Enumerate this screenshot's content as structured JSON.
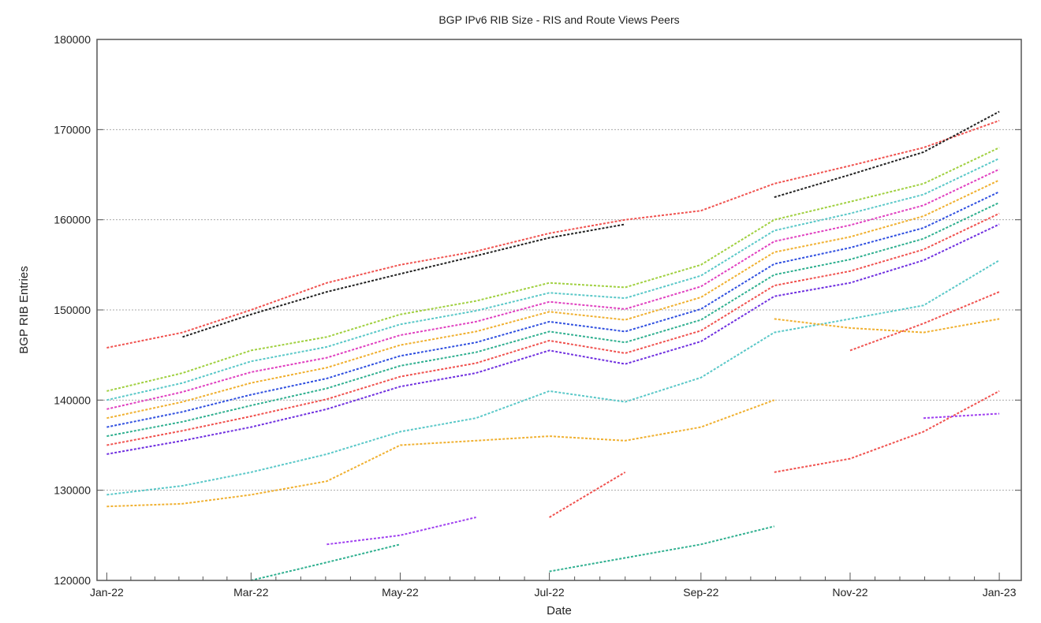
{
  "chart_data": {
    "type": "scatter",
    "title": "BGP IPv6 RIB Size - RIS and Route Views Peers",
    "xlabel": "Date",
    "ylabel": "BGP RIB Entries",
    "xlim": [
      "2021-12-28",
      "2023-01-10"
    ],
    "ylim": [
      120000,
      180000
    ],
    "yticks": [
      120000,
      130000,
      140000,
      150000,
      160000,
      170000,
      180000
    ],
    "xticks": [
      {
        "date": "2022-01-01",
        "label": "Jan-22"
      },
      {
        "date": "2022-03-01",
        "label": "Mar-22"
      },
      {
        "date": "2022-05-01",
        "label": "May-22"
      },
      {
        "date": "2022-07-01",
        "label": "Jul-22"
      },
      {
        "date": "2022-09-01",
        "label": "Sep-22"
      },
      {
        "date": "2022-11-01",
        "label": "Nov-22"
      },
      {
        "date": "2023-01-01",
        "label": "Jan-23"
      }
    ],
    "grid": "horizontal dotted",
    "legend": "none",
    "x": [
      "2022-01-01",
      "2022-02-01",
      "2022-03-01",
      "2022-04-01",
      "2022-05-01",
      "2022-06-01",
      "2022-07-01",
      "2022-08-01",
      "2022-09-01",
      "2022-10-01",
      "2022-11-01",
      "2022-12-01",
      "2023-01-01"
    ],
    "series": [
      {
        "color": "#7030e0",
        "values": [
          134000,
          135500,
          137000,
          139000,
          141500,
          143000,
          145500,
          144000,
          146500,
          151500,
          153000,
          155500,
          159500
        ]
      },
      {
        "color": "#f0524f",
        "values": [
          135000,
          136600,
          138200,
          140100,
          142600,
          144100,
          146600,
          145200,
          147700,
          152700,
          154300,
          156700,
          160700
        ]
      },
      {
        "color": "#30b090",
        "values": [
          136000,
          137600,
          139400,
          141300,
          143800,
          145300,
          147600,
          146400,
          148900,
          153900,
          155600,
          157900,
          161900
        ]
      },
      {
        "color": "#3050e0",
        "values": [
          137000,
          138700,
          140600,
          142400,
          144900,
          146400,
          148700,
          147600,
          150100,
          155100,
          156900,
          159100,
          163100
        ]
      },
      {
        "color": "#f0b030",
        "values": [
          138000,
          139800,
          141900,
          143600,
          146100,
          147600,
          149800,
          148900,
          151400,
          156400,
          158100,
          160400,
          164400
        ]
      },
      {
        "color": "#e040c0",
        "values": [
          139000,
          140900,
          143100,
          144700,
          147200,
          148700,
          150900,
          150100,
          152600,
          157600,
          159400,
          161600,
          165600
        ]
      },
      {
        "color": "#5ac8c8",
        "values": [
          140000,
          141900,
          144300,
          145900,
          148400,
          149900,
          151900,
          151300,
          153800,
          158800,
          160700,
          162800,
          166800
        ]
      },
      {
        "color": "#a0d040",
        "values": [
          141000,
          143000,
          145500,
          147000,
          149500,
          151000,
          153000,
          152500,
          155000,
          160000,
          162000,
          164000,
          168000
        ]
      },
      {
        "color": "#f0524f",
        "values": [
          145800,
          147500,
          150000,
          153000,
          155000,
          156500,
          158500,
          160000,
          161000,
          164000,
          166000,
          168000,
          171000
        ]
      },
      {
        "color": "#222222",
        "values": [
          null,
          147000,
          149500,
          152000,
          154000,
          156000,
          158000,
          159500,
          null,
          162500,
          165000,
          167500,
          172000
        ]
      },
      {
        "color": "#5ac8c8",
        "values": [
          129500,
          130500,
          132000,
          134000,
          136500,
          138000,
          141000,
          139800,
          142500,
          147500,
          149000,
          150500,
          155500
        ]
      },
      {
        "color": "#f0b030",
        "values": [
          128200,
          128500,
          129500,
          131000,
          135000,
          135500,
          136000,
          135500,
          137000,
          140000,
          null,
          null,
          null
        ]
      },
      {
        "color": "#f0b030",
        "values": [
          null,
          null,
          null,
          null,
          null,
          null,
          null,
          null,
          null,
          149000,
          148000,
          147500,
          149000
        ]
      },
      {
        "color": "#f0524f",
        "values": [
          null,
          null,
          null,
          null,
          null,
          null,
          127000,
          132000,
          null,
          132000,
          133500,
          136500,
          141000
        ]
      },
      {
        "color": "#f0524f",
        "values": [
          null,
          null,
          null,
          null,
          null,
          null,
          null,
          null,
          null,
          null,
          145500,
          148500,
          152000
        ]
      },
      {
        "color": "#30b090",
        "values": [
          null,
          null,
          120000,
          122000,
          124000,
          null,
          121000,
          122500,
          124000,
          126000,
          null,
          null,
          null
        ]
      },
      {
        "color": "#a040f0",
        "values": [
          null,
          null,
          null,
          124000,
          125000,
          127000,
          null,
          null,
          null,
          null,
          null,
          null,
          null
        ]
      },
      {
        "color": "#a040f0",
        "values": [
          null,
          null,
          null,
          null,
          null,
          null,
          null,
          null,
          null,
          null,
          null,
          138000,
          138500
        ]
      }
    ]
  }
}
